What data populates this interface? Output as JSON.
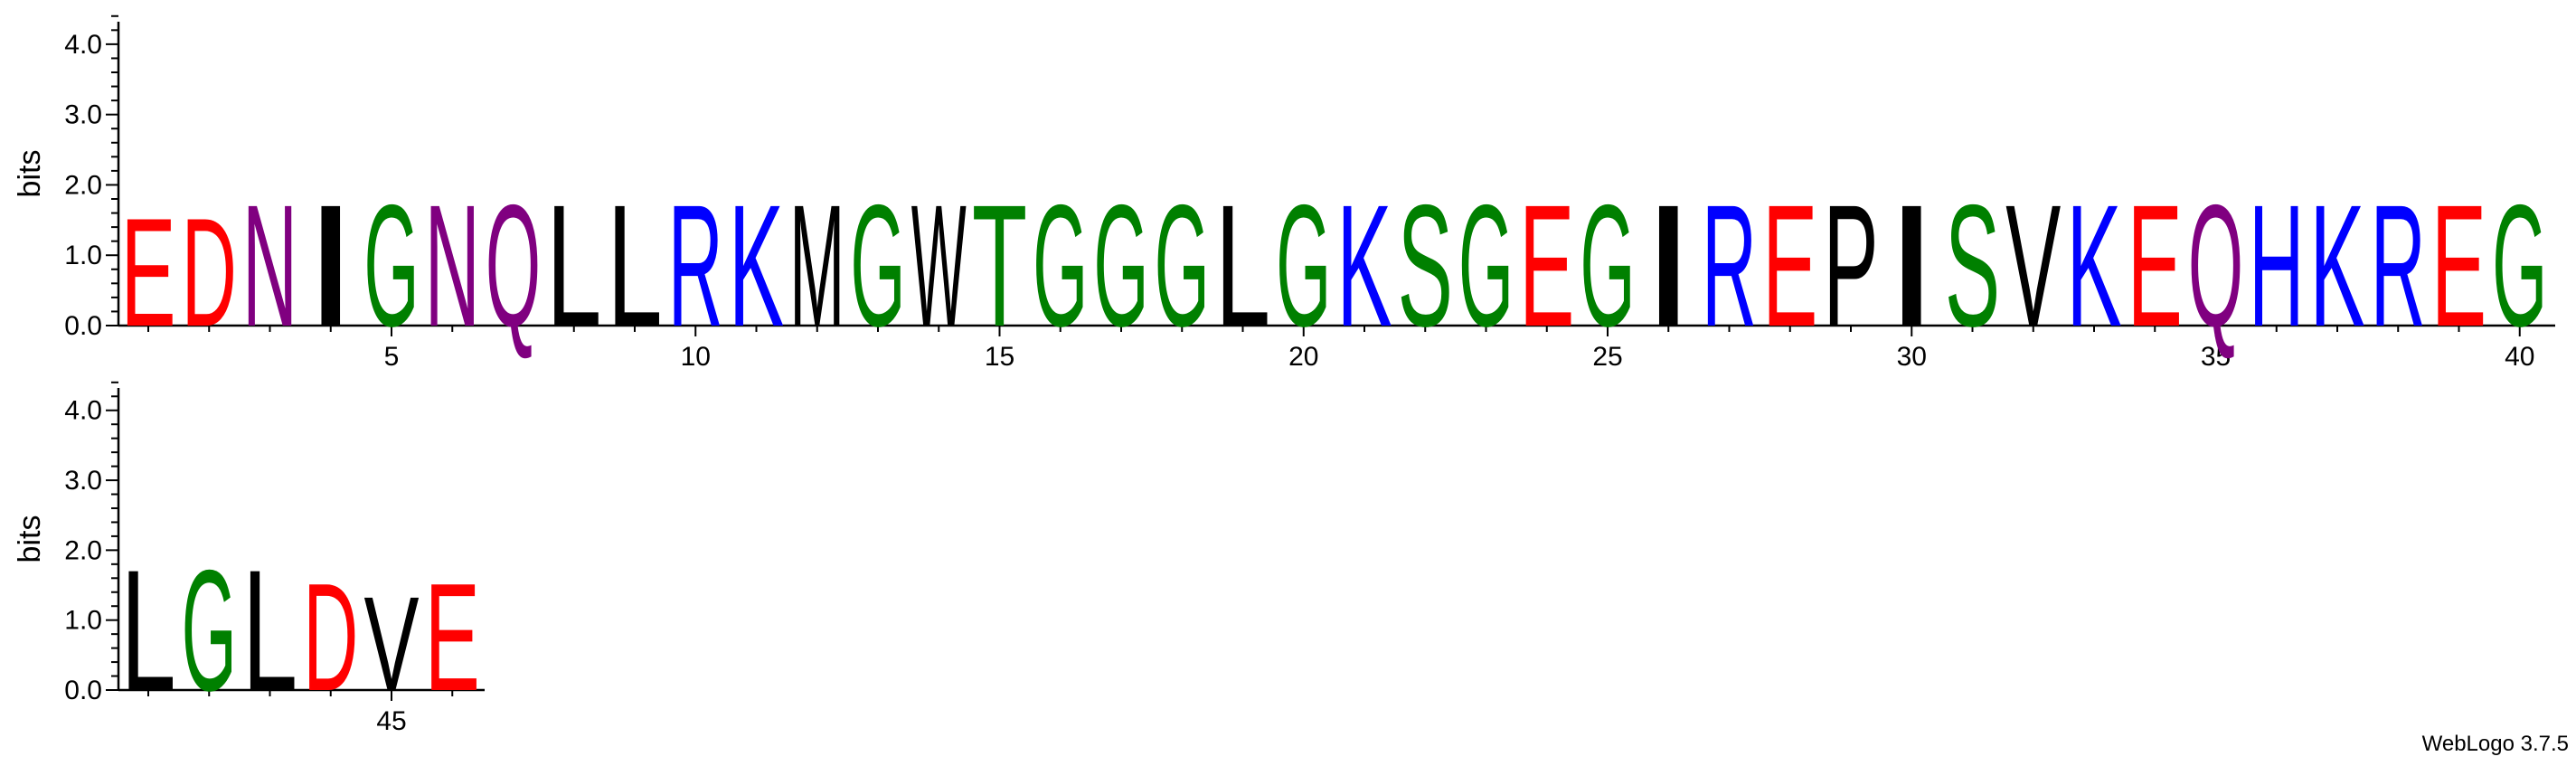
{
  "chart_data": [
    {
      "type": "sequence-logo",
      "ylabel": "bits",
      "ylim": [
        0,
        4.32
      ],
      "yticks": [
        "0.0",
        "1.0",
        "2.0",
        "3.0",
        "4.0"
      ],
      "xticks": [
        5,
        10,
        15,
        20,
        25,
        30,
        35,
        40
      ],
      "positions": [
        1,
        2,
        3,
        4,
        5,
        6,
        7,
        8,
        9,
        10,
        11,
        12,
        13,
        14,
        15,
        16,
        17,
        18,
        19,
        20,
        21,
        22,
        23,
        24,
        25,
        26,
        27,
        28,
        29,
        30,
        31,
        32,
        33,
        34,
        35,
        36,
        37,
        38,
        39,
        40
      ],
      "letters": [
        "E",
        "D",
        "N",
        "I",
        "G",
        "N",
        "Q",
        "L",
        "L",
        "R",
        "K",
        "M",
        "G",
        "W",
        "T",
        "G",
        "G",
        "G",
        "L",
        "G",
        "K",
        "S",
        "G",
        "E",
        "G",
        "I",
        "R",
        "E",
        "P",
        "I",
        "S",
        "V",
        "K",
        "E",
        "Q",
        "H",
        "K",
        "R",
        "E",
        "G"
      ],
      "bits": [
        1.6,
        1.6,
        1.8,
        1.8,
        1.8,
        1.8,
        1.8,
        1.8,
        1.8,
        1.8,
        1.8,
        1.8,
        1.8,
        1.8,
        1.8,
        1.8,
        1.8,
        1.8,
        1.8,
        1.8,
        1.8,
        1.8,
        1.8,
        1.8,
        1.8,
        1.8,
        1.8,
        1.8,
        1.8,
        1.8,
        1.8,
        1.8,
        1.8,
        1.8,
        1.8,
        1.8,
        1.8,
        1.8,
        1.8,
        1.8
      ]
    },
    {
      "type": "sequence-logo",
      "ylabel": "bits",
      "ylim": [
        0,
        4.32
      ],
      "yticks": [
        "0.0",
        "1.0",
        "2.0",
        "3.0",
        "4.0"
      ],
      "xticks": [
        45
      ],
      "positions": [
        41,
        42,
        43,
        44,
        45,
        46
      ],
      "letters": [
        "L",
        "G",
        "L",
        "D",
        "V",
        "E"
      ],
      "bits": [
        1.8,
        1.8,
        1.8,
        1.6,
        1.4,
        1.6
      ]
    }
  ],
  "colors": {
    "black": "#000000",
    "green": "#008000",
    "blue": "#0000ff",
    "red": "#ff0000",
    "purple": "#800080"
  },
  "residue_color_map": {
    "A": "black",
    "C": "green",
    "D": "red",
    "E": "red",
    "F": "black",
    "G": "green",
    "H": "blue",
    "I": "black",
    "K": "blue",
    "L": "black",
    "M": "black",
    "N": "purple",
    "P": "black",
    "Q": "purple",
    "R": "blue",
    "S": "green",
    "T": "green",
    "V": "black",
    "W": "black",
    "Y": "green"
  },
  "credit": "WebLogo 3.7.5"
}
